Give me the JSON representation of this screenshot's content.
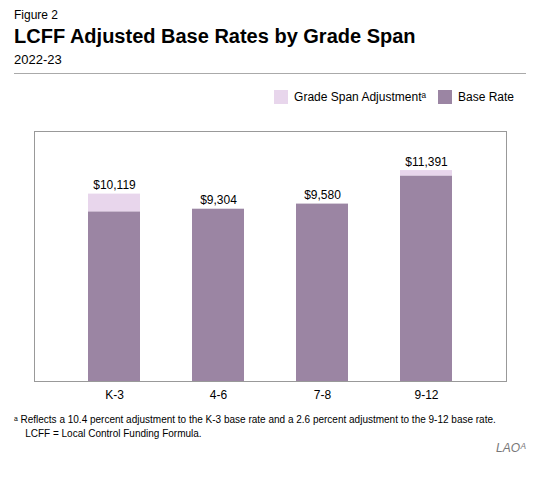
{
  "chart_data": {
    "type": "bar",
    "stacked": true,
    "figure_label": "Figure 2",
    "title": "LCFF Adjusted Base Rates by Grade Span",
    "subtitle": "2022-23",
    "categories": [
      "K-3",
      "4-6",
      "7-8",
      "9-12"
    ],
    "series": [
      {
        "name": "Base Rate",
        "color": "#9b85a3",
        "values": [
          9163,
          9304,
          9580,
          11100
        ]
      },
      {
        "name": "Grade Span Adjustmentᵃ",
        "color": "#e8d6ec",
        "values": [
          956,
          0,
          0,
          291
        ]
      }
    ],
    "totals": [
      10119,
      9304,
      9580,
      11391
    ],
    "value_labels": [
      "$10,119",
      "$9,304",
      "$9,580",
      "$11,391"
    ],
    "ylim": [
      0,
      13500
    ],
    "yticks": [],
    "tick_labels": "x",
    "grid": false,
    "legend": "upper right",
    "footnotes": [
      "ᵃ Reflects a 10.4 percent adjustment to the K-3 base rate and a 2.6 percent adjustment to the 9-12 base rate.",
      "    LCFF = Local Control Funding Formula."
    ],
    "logo": "LAOᴬ"
  }
}
